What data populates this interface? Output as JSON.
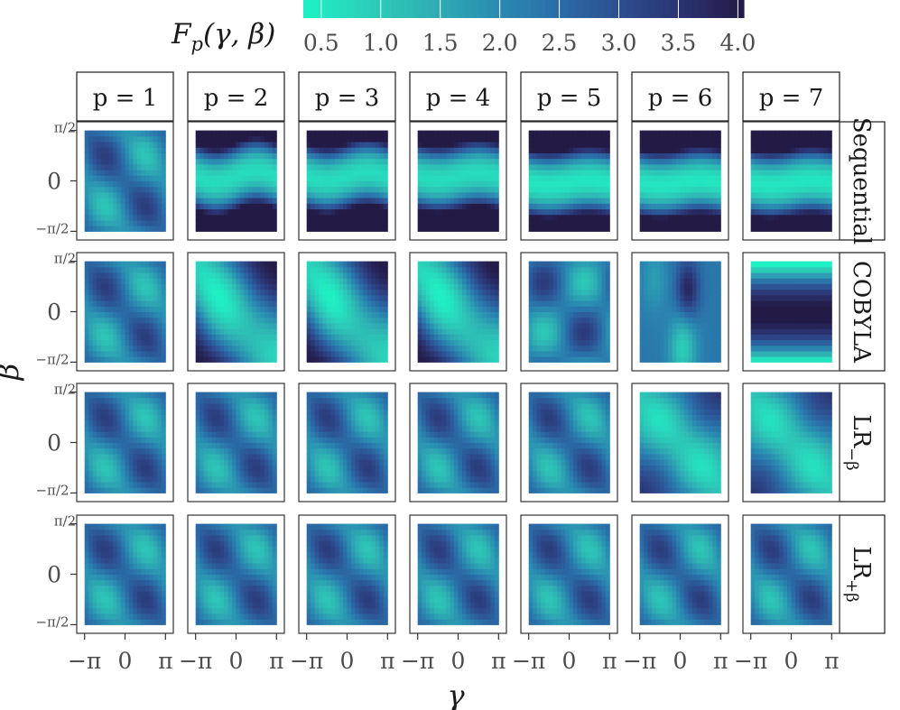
{
  "chart_data": {
    "type": "heatmap",
    "title": "",
    "legend": {
      "title": "F_p(γ, β)",
      "title_main": "F",
      "title_sub": "p",
      "title_args": "(γ, β)",
      "ticks": [
        "0.5",
        "1.0",
        "1.5",
        "2.0",
        "2.5",
        "3.0",
        "3.5",
        "4.0"
      ],
      "range": [
        0.35,
        4.05
      ],
      "placement": "top",
      "colors": [
        "#1ef2c4",
        "#2bd0b9",
        "#2fb0b3",
        "#2a8fb2",
        "#2a6ea8",
        "#2d4f91",
        "#2b3371",
        "#231a45"
      ]
    },
    "xlabel": "γ",
    "ylabel": "β",
    "x_tick_labels": [
      "−π",
      "0",
      "π"
    ],
    "y_tick_labels": [
      "−π/2",
      "0",
      "π/2"
    ],
    "xlim": [
      -3.4,
      3.4
    ],
    "ylim": [
      -1.7,
      1.7
    ],
    "columns": [
      "p = 1",
      "p = 2",
      "p = 3",
      "p = 4",
      "p = 5",
      "p = 6",
      "p = 7"
    ],
    "rows": [
      "Sequential",
      "COBYLA",
      "LR−β",
      "LR+β"
    ],
    "row_label_main": [
      "Sequential",
      "COBYLA",
      "LR",
      "LR"
    ],
    "row_label_sub": [
      "",
      "",
      "−β",
      "+β"
    ],
    "panel_patterns": [
      [
        "checker",
        "band-tilt",
        "band-tilt",
        "band-tilt",
        "band-flat",
        "band-flat",
        "band-flat"
      ],
      [
        "checker",
        "diag",
        "diag",
        "diag",
        "checker-shift",
        "blob",
        "inverted-band"
      ],
      [
        "checker",
        "checker",
        "checker",
        "checker",
        "checker",
        "diag-soft",
        "diag-soft"
      ],
      [
        "checker",
        "checker",
        "checker",
        "checker",
        "checker",
        "checker",
        "checker"
      ]
    ],
    "grid": false
  }
}
